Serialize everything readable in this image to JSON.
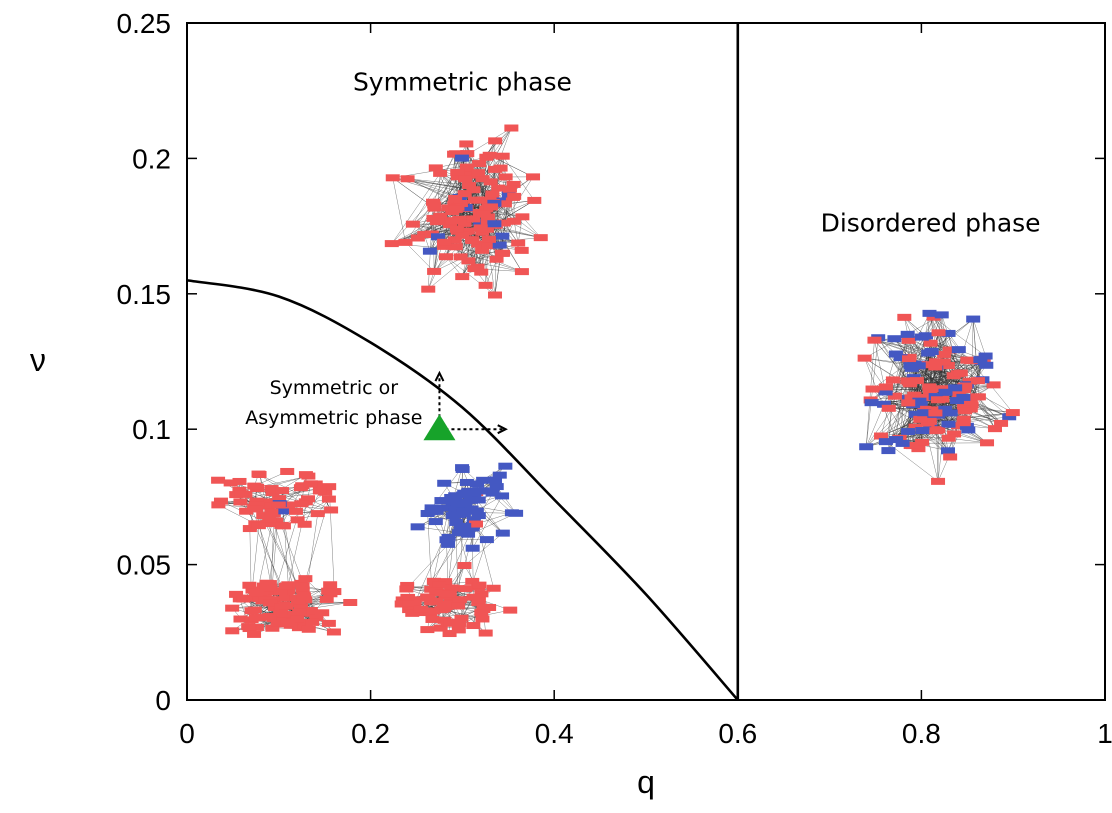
{
  "chart_data": {
    "type": "line",
    "xlabel": "q",
    "ylabel": "ν",
    "xlim": [
      0,
      1
    ],
    "ylim": [
      0,
      0.25
    ],
    "x_ticks": [
      "0",
      "0.2",
      "0.4",
      "0.6",
      "0.8",
      "1"
    ],
    "y_ticks": [
      "0",
      "0.05",
      "0.1",
      "0.15",
      "0.2",
      "0.25"
    ],
    "x_tick_values": [
      0,
      0.2,
      0.4,
      0.6,
      0.8,
      1
    ],
    "y_tick_values": [
      0,
      0.05,
      0.1,
      0.15,
      0.2,
      0.25
    ],
    "series": [
      {
        "kind": "boundary-curve",
        "x": [
          0,
          0.1,
          0.2,
          0.3,
          0.4,
          0.5,
          0.6
        ],
        "y": [
          0.155,
          0.149,
          0.132,
          0.108,
          0.074,
          0.039,
          0.0
        ]
      },
      {
        "kind": "boundary-vertical",
        "x": [
          0.6,
          0.6
        ],
        "y": [
          0,
          0.25
        ]
      }
    ],
    "marker": {
      "shape": "triangle",
      "x": 0.275,
      "y": 0.1,
      "color": "#17a32a"
    },
    "arrows": [
      {
        "direction": "up",
        "from": [
          0.275,
          0.1
        ],
        "to": [
          0.275,
          0.12
        ]
      },
      {
        "direction": "right",
        "from": [
          0.275,
          0.1
        ],
        "to": [
          0.345,
          0.1
        ]
      }
    ],
    "annotations": [
      {
        "text": "Symmetric phase",
        "x": 0.3,
        "y": 0.225
      },
      {
        "text": "Disordered phase",
        "x": 0.81,
        "y": 0.173
      },
      {
        "text": "Symmetric or",
        "x": 0.16,
        "y": 0.113
      },
      {
        "text": "Asymmetric phase",
        "x": 0.16,
        "y": 0.102
      }
    ],
    "network_insets": [
      {
        "name": "symmetric-network",
        "x": 0.31,
        "y": 0.18,
        "red": 118,
        "blue": 12
      },
      {
        "name": "disordered-network",
        "x": 0.81,
        "y": 0.115,
        "red": 90,
        "blue": 60
      },
      {
        "name": "asymmetric-red-network",
        "x": 0.11,
        "y": 0.05,
        "red": 150,
        "blue": 2
      },
      {
        "name": "asymmetric-mixed-network",
        "x": 0.29,
        "y": 0.05,
        "red": 70,
        "blue": 70
      }
    ],
    "colors": {
      "red_node": "#f05555",
      "blue_node": "#4458c2",
      "curve": "#000000",
      "marker": "#17a32a"
    },
    "grid": false
  }
}
